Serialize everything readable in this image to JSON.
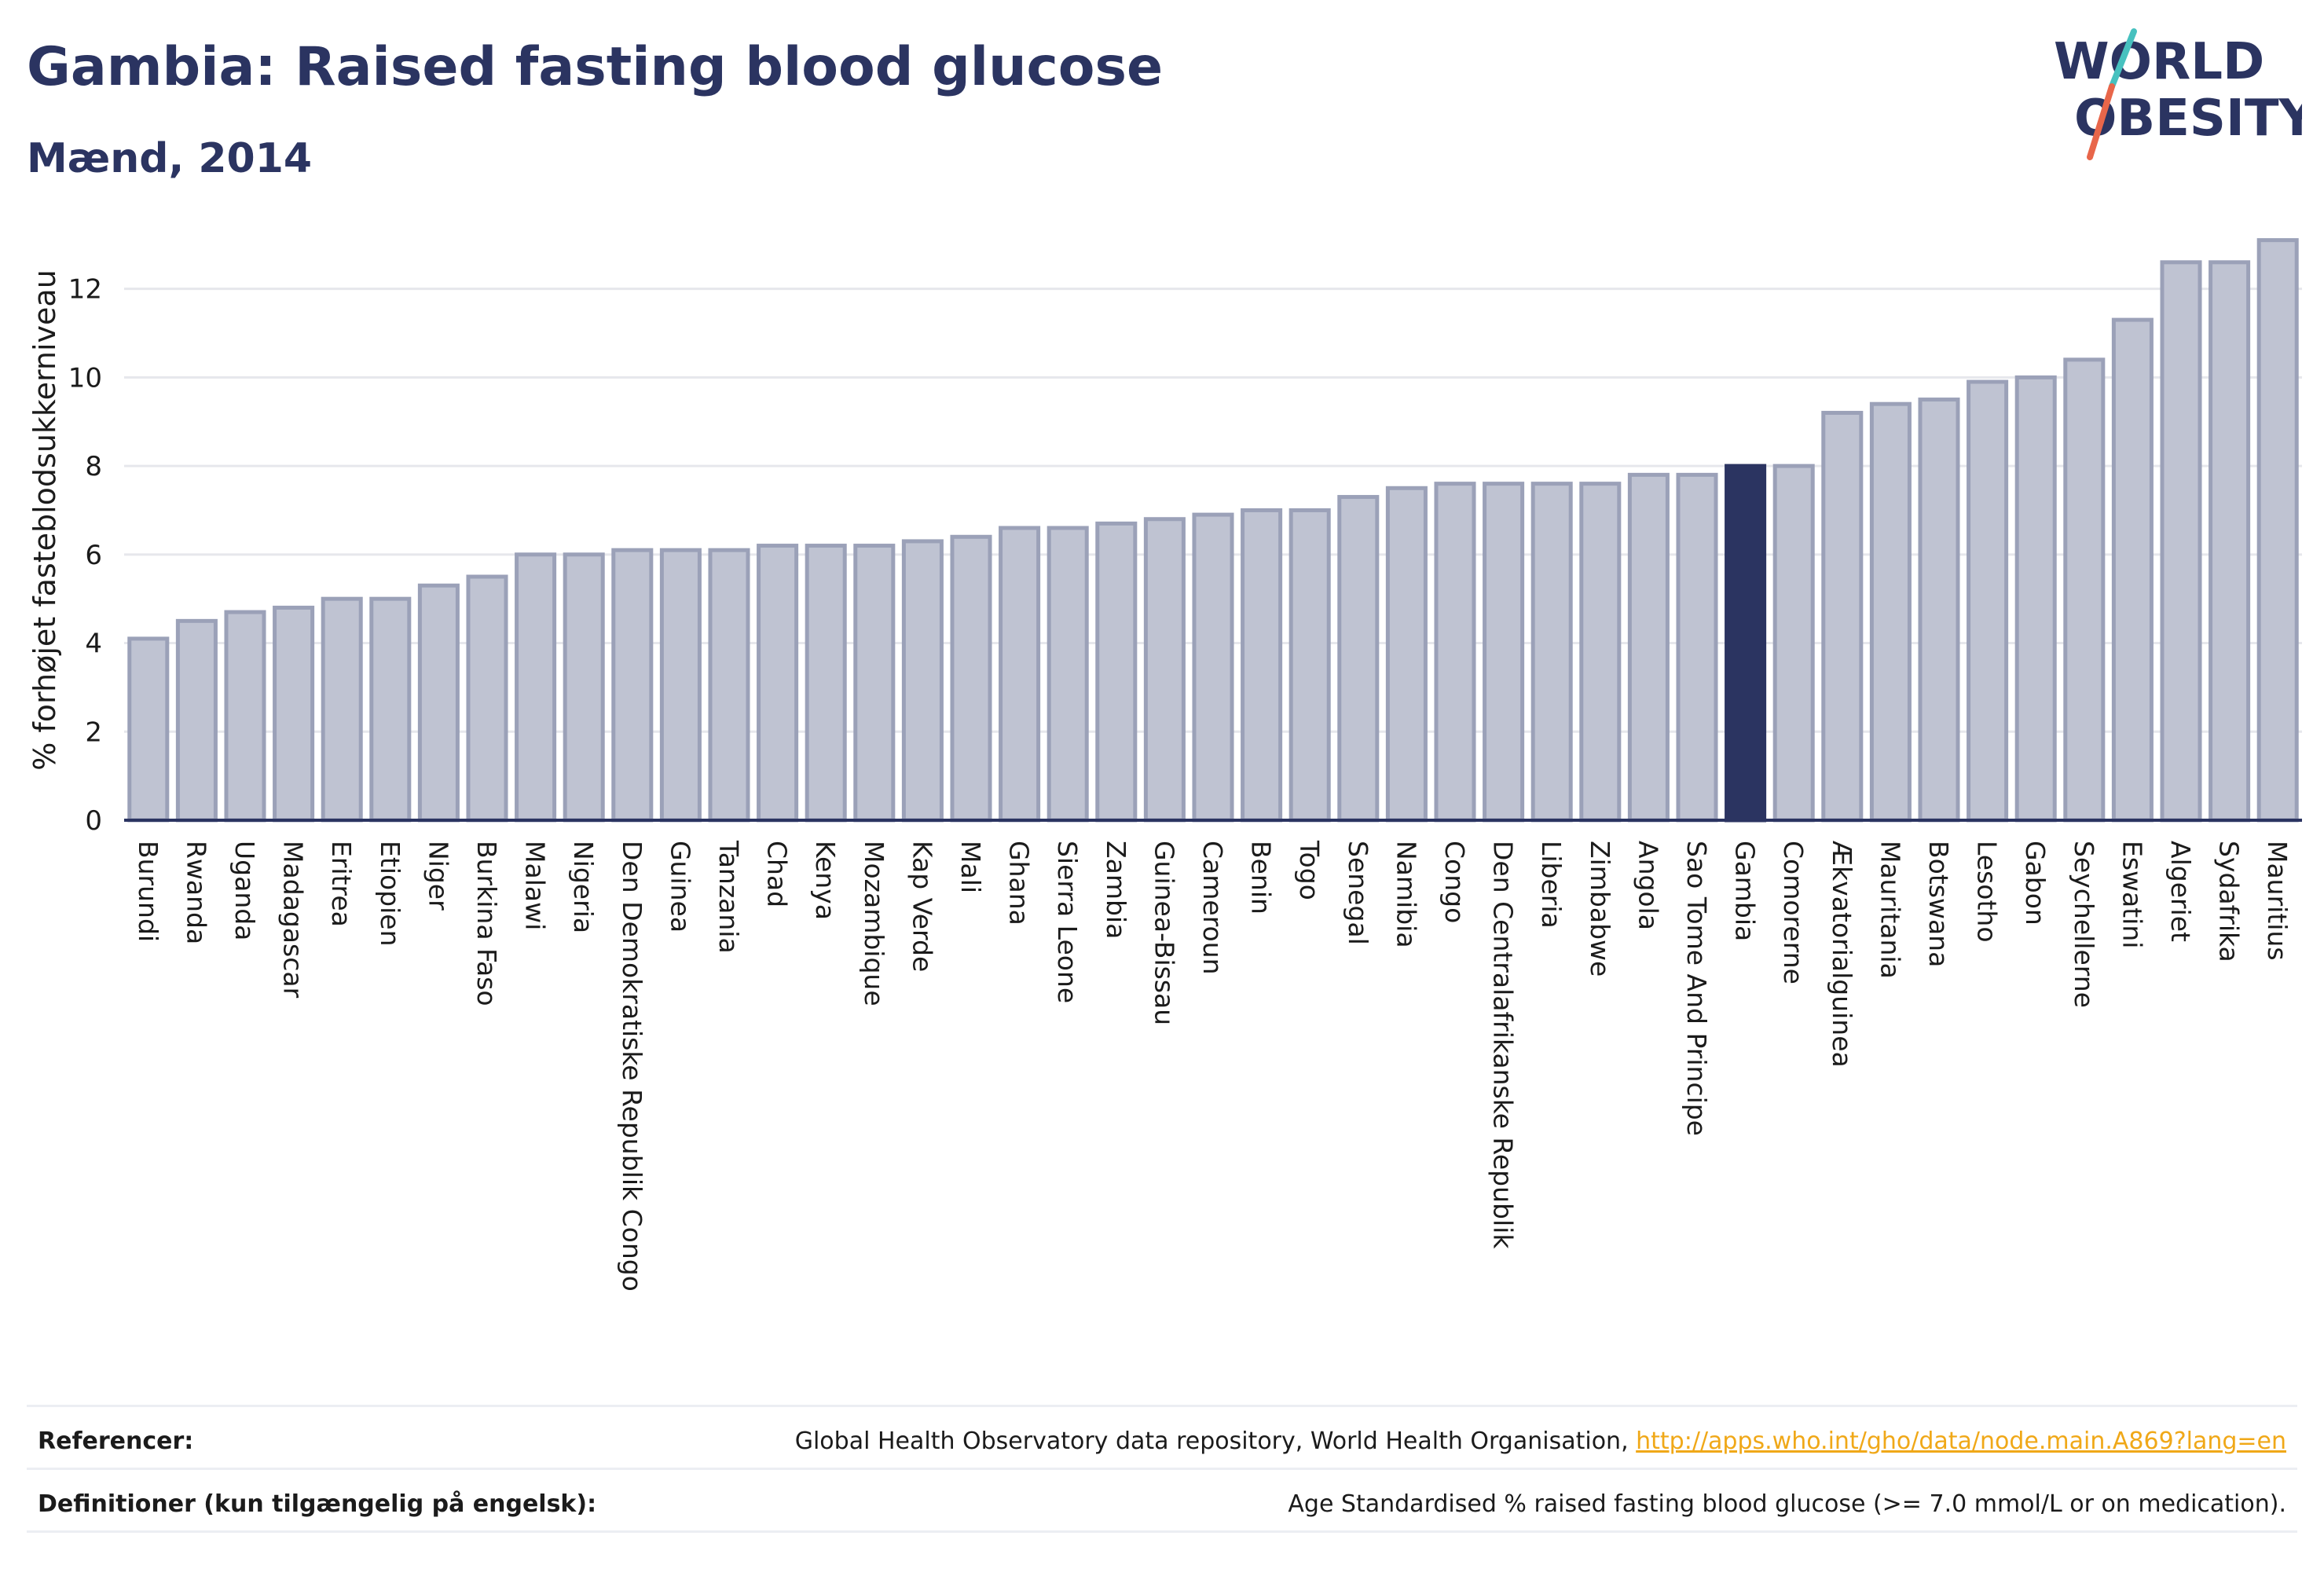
{
  "header": {
    "title": "Gambia: Raised fasting blood glucose",
    "subtitle": "Mænd, 2014"
  },
  "logo": {
    "line1": "WORLD",
    "line2": "OBESITY",
    "slash_colors": [
      "#47c1bf",
      "#e8664a"
    ]
  },
  "colors": {
    "bar": "#bfc3d2",
    "bar_stroke": "#9ba1b8",
    "highlight": "#2b3461",
    "axis": "#2b3461",
    "grid": "#e6e7ec",
    "link": "#f0a818"
  },
  "chart_data": {
    "type": "bar",
    "ylabel": "% forhøjet fasteblodsukkerniveau",
    "xlabel": "",
    "ylim": [
      0,
      13.2
    ],
    "yticks": [
      0,
      2,
      4,
      6,
      8,
      10,
      12
    ],
    "grid": true,
    "highlight": "Gambia",
    "categories": [
      "Burundi",
      "Rwanda",
      "Uganda",
      "Madagascar",
      "Eritrea",
      "Etiopien",
      "Niger",
      "Burkina Faso",
      "Malawi",
      "Nigeria",
      "Den Demokratiske Republik Congo",
      "Guinea",
      "Tanzania",
      "Chad",
      "Kenya",
      "Mozambique",
      "Kap Verde",
      "Mali",
      "Ghana",
      "Sierra Leone",
      "Zambia",
      "Guinea-Bissau",
      "Cameroun",
      "Benin",
      "Togo",
      "Senegal",
      "Namibia",
      "Congo",
      "Den Centralafrikanske Republik",
      "Liberia",
      "Zimbabwe",
      "Angola",
      "Sao Tome And Principe",
      "Gambia",
      "Comorerne",
      "Ækvatorialguinea",
      "Mauritania",
      "Botswana",
      "Lesotho",
      "Gabon",
      "Seychellerne",
      "Eswatini",
      "Algeriet",
      "Sydafrika",
      "Mauritius"
    ],
    "values": [
      4.1,
      4.5,
      4.7,
      4.8,
      5.0,
      5.0,
      5.3,
      5.5,
      6.0,
      6.0,
      6.1,
      6.1,
      6.1,
      6.2,
      6.2,
      6.2,
      6.3,
      6.4,
      6.6,
      6.6,
      6.7,
      6.8,
      6.9,
      7.0,
      7.0,
      7.3,
      7.5,
      7.6,
      7.6,
      7.6,
      7.6,
      7.8,
      7.8,
      8.0,
      8.0,
      9.2,
      9.4,
      9.5,
      9.9,
      10.0,
      10.4,
      11.3,
      12.6,
      12.6,
      13.1
    ]
  },
  "footer": {
    "references_label": "Referencer:",
    "references_text": "Global Health Observatory data repository, World Health Organisation, ",
    "references_link": "http://apps.who.int/gho/data/node.main.A869?lang=en",
    "definitions_label": "Definitioner (kun tilgængelig på engelsk):",
    "definitions_text": "Age Standardised % raised fasting blood glucose (>= 7.0 mmol/L or on medication)."
  }
}
